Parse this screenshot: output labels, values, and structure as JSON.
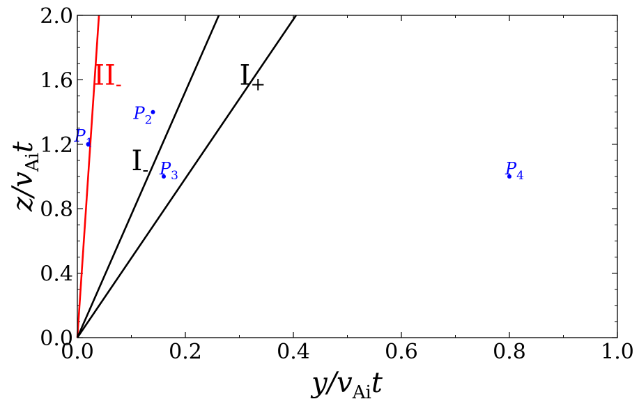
{
  "chart_data": {
    "type": "line",
    "xlabel": {
      "main": "y/v",
      "sub": "Ai",
      "tail": "t"
    },
    "ylabel": {
      "main": "z/v",
      "sub": "Ai",
      "tail": "t"
    },
    "xlim": [
      0.0,
      1.0
    ],
    "ylim": [
      0.0,
      2.0
    ],
    "xticks": [
      0.0,
      0.2,
      0.4,
      0.6,
      0.8,
      1.0
    ],
    "xtick_labels": [
      "0.0",
      "0.2",
      "0.4",
      "0.6",
      "0.8",
      "1.0"
    ],
    "yticks": [
      0.0,
      0.4,
      0.8,
      1.2,
      1.6,
      2.0
    ],
    "ytick_labels": [
      "0.0",
      "0.4",
      "0.8",
      "1.2",
      "1.6",
      "2.0"
    ],
    "grid": false,
    "series": [
      {
        "color": "#ff0000",
        "x": [
          0.0,
          0.04
        ],
        "y": [
          0.0,
          2.0
        ]
      },
      {
        "color": "#000000",
        "x": [
          0.0,
          0.262
        ],
        "y": [
          0.0,
          2.0
        ]
      },
      {
        "color": "#000000",
        "x": [
          0.0,
          0.405
        ],
        "y": [
          0.0,
          2.0
        ]
      }
    ],
    "region_labels": [
      {
        "main": "II",
        "sub": "-",
        "x": 0.03,
        "y": 1.63,
        "color": "#ff0000"
      },
      {
        "main": "I",
        "sub": "-",
        "x": 0.1,
        "y": 1.1,
        "color": "#000000"
      },
      {
        "main": "I",
        "sub": "+",
        "x": 0.3,
        "y": 1.63,
        "color": "#000000"
      }
    ],
    "points": [
      {
        "label": "P",
        "sub": "1",
        "x": 0.02,
        "y": 1.2,
        "color": "#0000ff"
      },
      {
        "label": "P",
        "sub": "2",
        "x": 0.14,
        "y": 1.4,
        "color": "#0000ff"
      },
      {
        "label": "P",
        "sub": "3",
        "x": 0.16,
        "y": 1.0,
        "color": "#0000ff"
      },
      {
        "label": "P",
        "sub": "4",
        "x": 0.8,
        "y": 1.0,
        "color": "#0000ff"
      }
    ]
  }
}
